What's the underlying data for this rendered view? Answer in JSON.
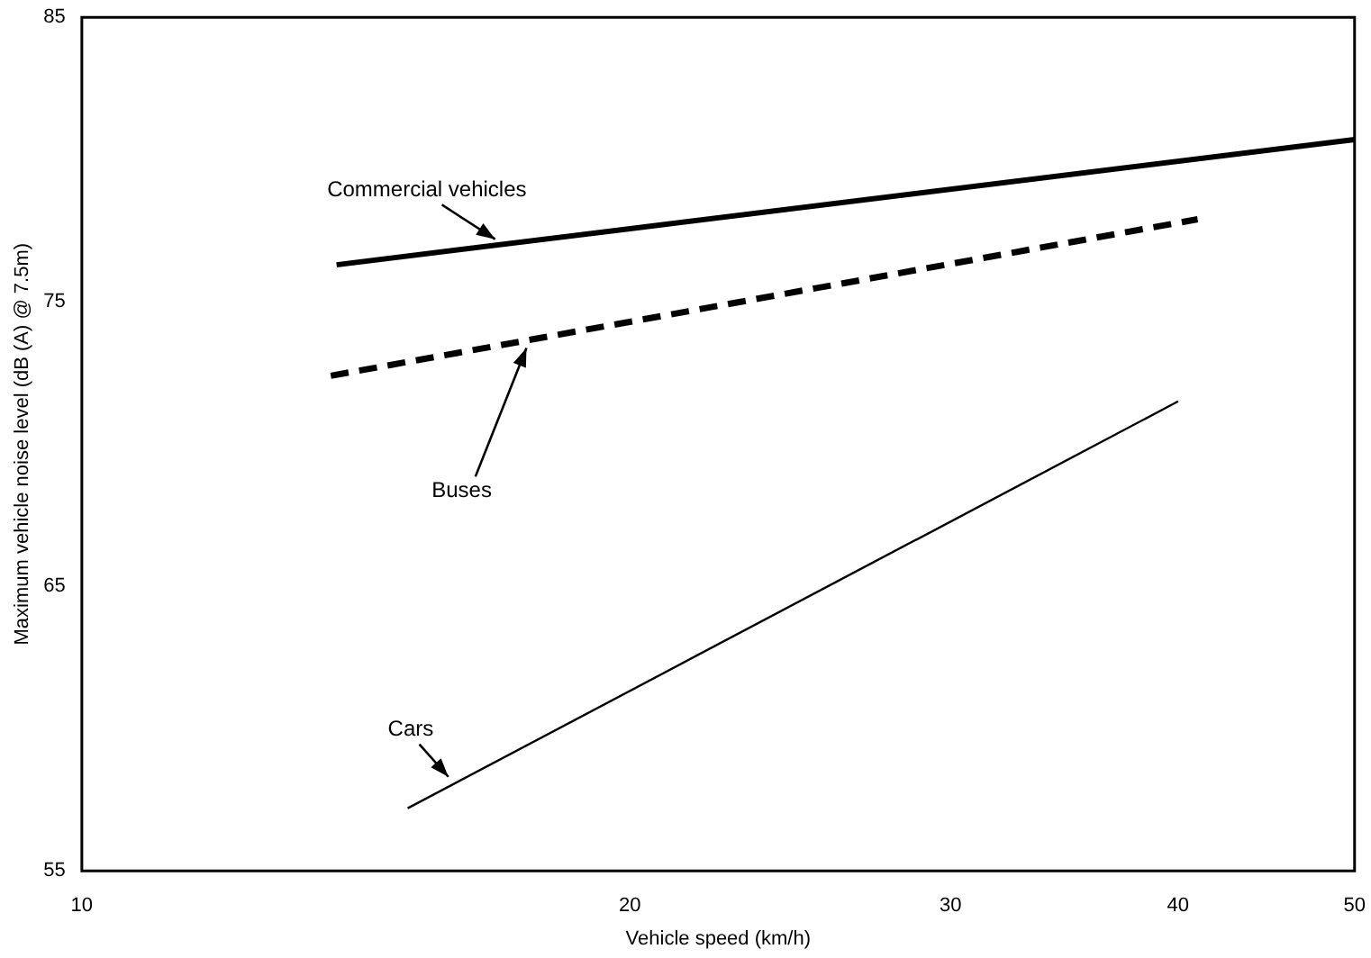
{
  "chart_data": {
    "type": "line",
    "xlabel": "Vehicle speed (km/h)",
    "ylabel": "Maximum vehicle noise level (dB (A) @ 7.5m)",
    "log": "x",
    "xlim": [
      10,
      50
    ],
    "xticks": [
      10,
      20,
      30,
      40,
      50
    ],
    "ylim": [
      55,
      85
    ],
    "yticks": [
      55,
      65,
      75,
      85
    ],
    "grid": false,
    "legend": false,
    "marker": "none",
    "series": [
      {
        "name": "Commercial vehicles",
        "color": "#000000",
        "line_style": "solid",
        "x": [
          13.8,
          50
        ],
        "values": [
          76.3,
          80.7
        ]
      },
      {
        "name": "Buses",
        "color": "#000000",
        "line_style": "dashed",
        "x": [
          13.7,
          41
        ],
        "values": [
          72.4,
          77.9
        ]
      },
      {
        "name": "Cars",
        "color": "#000000",
        "line_style": "solid",
        "x": [
          15.1,
          40
        ],
        "values": [
          57.2,
          71.5
        ]
      }
    ]
  }
}
